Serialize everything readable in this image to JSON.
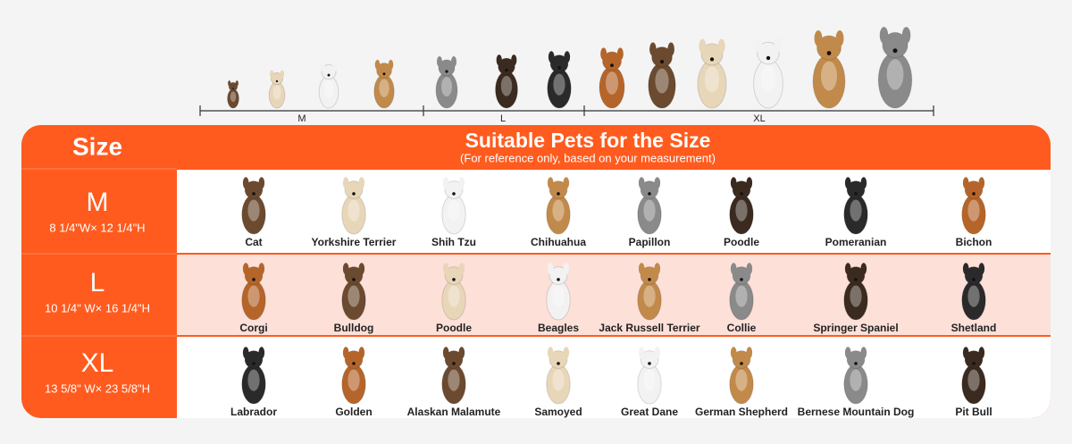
{
  "scale": {
    "labels": [
      "M",
      "L",
      "XL"
    ]
  },
  "header": {
    "size": "Size",
    "title": "Suitable Pets for the Size",
    "subtitle": "(For reference only, based on your measurement)"
  },
  "rows": [
    {
      "size": "M",
      "dimensions": "8 1/4\"W× 12 1/4\"H",
      "pets": [
        "Cat",
        "Yorkshire Terrier",
        "Shih Tzu",
        "Chihuahua",
        "Papillon",
        "Poodle",
        "Pomeranian",
        "Bichon"
      ]
    },
    {
      "size": "L",
      "dimensions": "10 1/4\" W× 16 1/4\"H",
      "pets": [
        "Corgi",
        "Bulldog",
        "Poodle",
        "Beagles",
        "Jack Russell Terrier",
        "Collie",
        "Springer Spaniel",
        "Shetland"
      ]
    },
    {
      "size": "XL",
      "dimensions": "13 5/8\" W× 23 5/8\"H",
      "pets": [
        "Labrador",
        "Golden",
        "Alaskan Malamute",
        "Samoyed",
        "Great Dane",
        "German Shepherd",
        "Bernese Mountain Dog",
        "Pit Bull"
      ]
    }
  ]
}
